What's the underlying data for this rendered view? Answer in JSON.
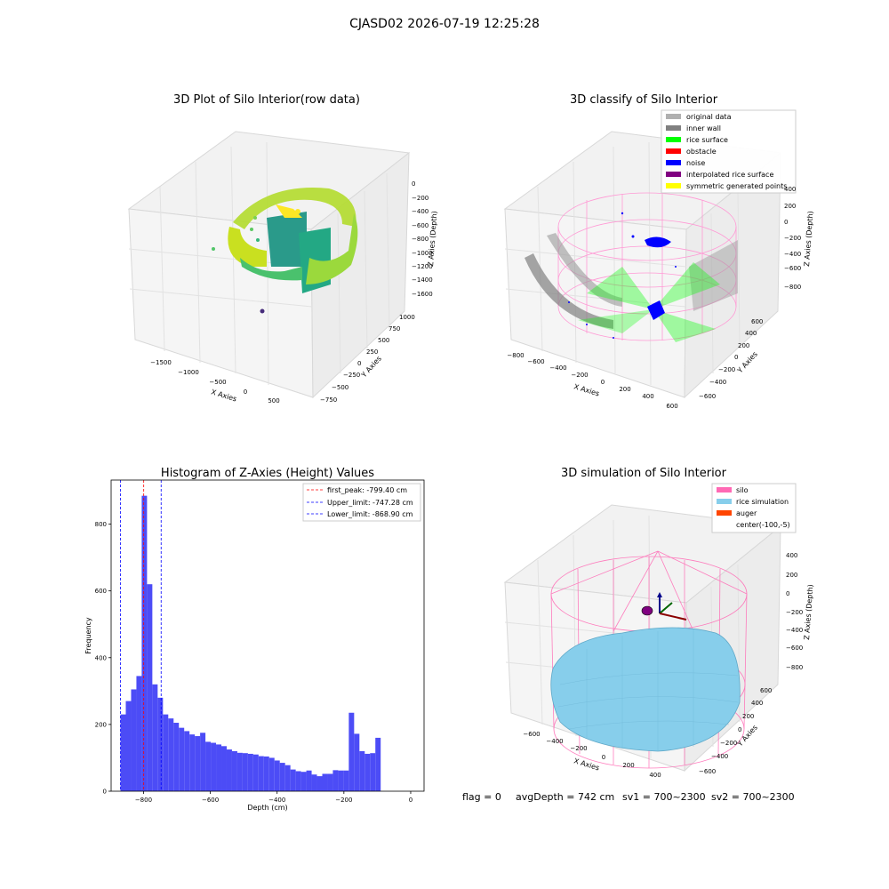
{
  "suptitle": "CJASD02 2026-07-19 12:25:28",
  "footer": {
    "flag": "flag = 0",
    "avgDepth": "avgDepth = 742 cm",
    "sv1": "sv1 = 700~2300",
    "sv2": "sv2 = 700~2300"
  },
  "colors": {
    "hist_bar": "#4c4cf6",
    "peak_line": "#ff0000",
    "limit_line": "#0000ff",
    "pane": "#f2f2f2",
    "grid": "#e0e0e0",
    "silo": "#ff69b4",
    "rice": "#87ceeb",
    "auger": "#ff4500"
  },
  "chart_data": [
    {
      "type": "scatter3d",
      "title": "3D Plot of Silo Interior(row data)",
      "xlabel": "X Axies",
      "ylabel": "Y Axies",
      "zlabel": "Z Axies (Depth)",
      "x_ticks": [
        "−1500",
        "−1000",
        "−500",
        "0",
        "500"
      ],
      "y_ticks": [
        "−750",
        "−500",
        "−250",
        "0",
        "250",
        "500",
        "750",
        "1000"
      ],
      "z_ticks": [
        "−1600",
        "−1400",
        "−1200",
        "−1000",
        "−800",
        "−600",
        "−400",
        "−200",
        "0"
      ],
      "colormap": "viridis"
    },
    {
      "type": "scatter3d",
      "title": "3D classify of Silo Interior",
      "xlabel": "X Axies",
      "ylabel": "Y Axies",
      "zlabel": "Z Axies (Depth)",
      "x_ticks": [
        "−800",
        "−600",
        "−400",
        "−200",
        "0",
        "200",
        "400",
        "600"
      ],
      "y_ticks": [
        "−600",
        "−400",
        "−200",
        "0",
        "200",
        "400",
        "600"
      ],
      "z_ticks": [
        "−800",
        "−600",
        "−400",
        "−200",
        "0",
        "200",
        "400"
      ],
      "legend_position": "top-right",
      "legend": [
        {
          "label": "original data",
          "color": "#b0b0b0"
        },
        {
          "label": "inner wall",
          "color": "#808080"
        },
        {
          "label": "rice surface",
          "color": "#00ff00"
        },
        {
          "label": "obstacle",
          "color": "#ff0000"
        },
        {
          "label": "noise",
          "color": "#0000ff"
        },
        {
          "label": "interpolated rice surface",
          "color": "#800080"
        },
        {
          "label": "symmetric generated points",
          "color": "#ffff00"
        }
      ]
    },
    {
      "type": "bar",
      "title": "Histogram of Z-Axies (Height) Values",
      "xlabel": "Depth (cm)",
      "ylabel": "Frequency",
      "xlim": [
        -897,
        40
      ],
      "ylim": [
        0,
        932
      ],
      "x_ticks": [
        -800,
        -600,
        -400,
        -200,
        0
      ],
      "y_ticks": [
        0,
        200,
        400,
        600,
        800
      ],
      "bin_start": -869,
      "bin_width": 15.9,
      "values": [
        230,
        270,
        305,
        345,
        885,
        620,
        320,
        280,
        230,
        218,
        205,
        190,
        180,
        170,
        165,
        175,
        148,
        145,
        140,
        135,
        125,
        120,
        115,
        114,
        112,
        110,
        105,
        104,
        100,
        92,
        85,
        78,
        65,
        60,
        58,
        62,
        50,
        45,
        52,
        52,
        63,
        62,
        62,
        235,
        172,
        120,
        112,
        114,
        160
      ],
      "vlines": [
        {
          "name": "first_peak: -799.40 cm",
          "x": -799.4,
          "color": "#ff0000"
        },
        {
          "name": "Upper_limit: -747.28 cm",
          "x": -747.28,
          "color": "#0000ff"
        },
        {
          "name": "Lower_limit: -868.90 cm",
          "x": -868.9,
          "color": "#0000ff"
        }
      ],
      "legend_position": "top-right"
    },
    {
      "type": "surface3d",
      "title": "3D simulation of Silo Interior",
      "xlabel": "X Axies",
      "ylabel": "Y Axies",
      "zlabel": "Z Axies (Depth)",
      "x_ticks": [
        "−600",
        "−400",
        "−200",
        "0",
        "200",
        "400"
      ],
      "y_ticks": [
        "−600",
        "−400",
        "−200",
        "0",
        "200",
        "400",
        "600"
      ],
      "z_ticks": [
        "−800",
        "−600",
        "−400",
        "−200",
        "0",
        "200",
        "400"
      ],
      "legend_position": "top-right",
      "legend": [
        {
          "label": "silo",
          "color": "#ff69b4"
        },
        {
          "label": "rice simulation",
          "color": "#87ceeb"
        },
        {
          "label": "auger",
          "color": "#ff4500"
        },
        {
          "label": "center(-100,-5)",
          "color": ""
        }
      ]
    }
  ]
}
